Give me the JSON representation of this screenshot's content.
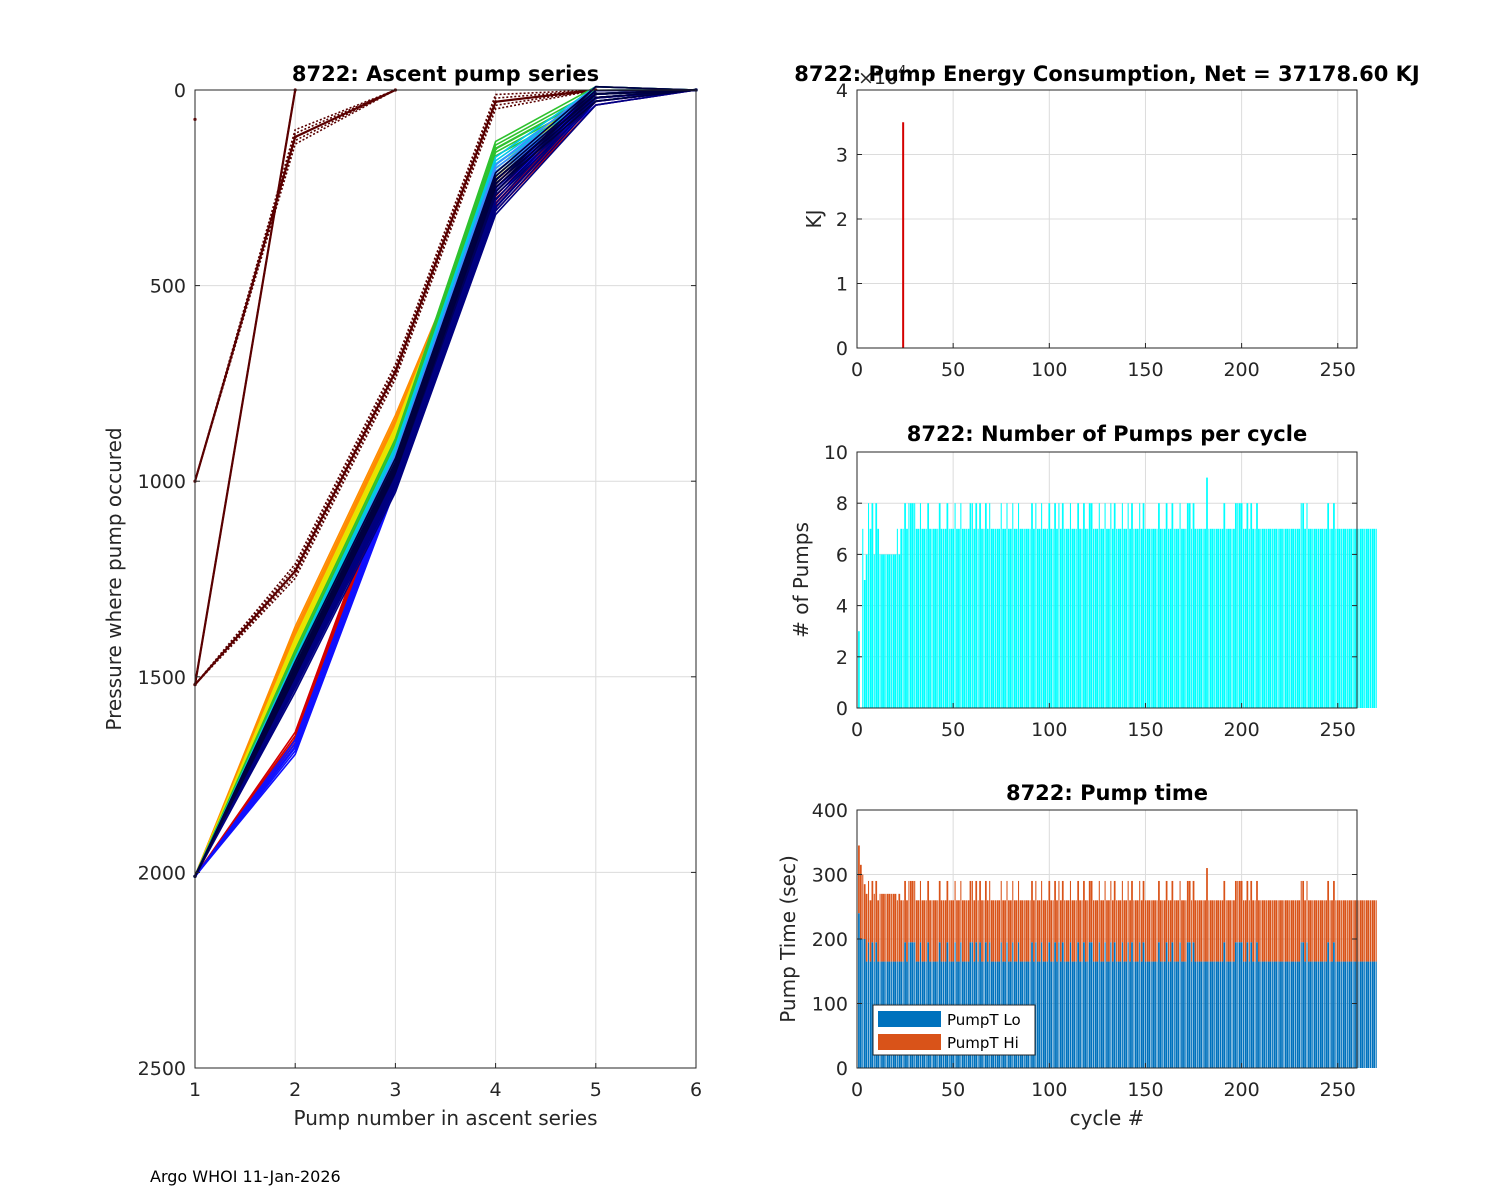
{
  "footer": "Argo WHOI 11-Jan-2026",
  "chart_data": [
    {
      "type": "line",
      "title": "8722: Ascent pump series",
      "xlabel": "Pump number in ascent series",
      "ylabel": "Pressure where pump occured",
      "xlim": [
        1,
        6
      ],
      "ylim": [
        0,
        2500
      ],
      "y_reversed": true,
      "xticks": [
        "1",
        "2",
        "3",
        "4",
        "5",
        "6"
      ],
      "yticks": [
        "0",
        "500",
        "1000",
        "1500",
        "2000",
        "2500"
      ],
      "grid": true,
      "series": [
        {
          "name": "dark red 1",
          "color": "#5a0000",
          "x": [
            1,
            2
          ],
          "y": [
            1520,
            0
          ]
        },
        {
          "name": "dark red 2",
          "color": "#5a0000",
          "x": [
            1,
            2,
            3
          ],
          "y": [
            1000,
            120,
            0
          ]
        },
        {
          "name": "dark red 3",
          "color": "#5a0000",
          "x": [
            1,
            2,
            3,
            4,
            5
          ],
          "y": [
            1520,
            1230,
            720,
            30,
            0
          ]
        },
        {
          "name": "dark red 4",
          "color": "#7a0000",
          "x": [
            1
          ],
          "y": [
            75
          ]
        },
        {
          "name": "red",
          "color": "#d40000",
          "x": [
            1,
            2,
            3,
            4,
            5,
            6
          ],
          "y": [
            2010,
            1660,
            960,
            290,
            20,
            0
          ]
        },
        {
          "name": "orange",
          "color": "#ff8c00",
          "x": [
            1,
            2,
            3,
            4,
            5,
            6
          ],
          "y": [
            2010,
            1390,
            850,
            240,
            10,
            0
          ]
        },
        {
          "name": "yellow",
          "color": "#e6e600",
          "x": [
            1,
            2,
            3,
            4,
            5,
            6
          ],
          "y": [
            2010,
            1420,
            880,
            220,
            10,
            0
          ]
        },
        {
          "name": "green",
          "color": "#2ec22e",
          "x": [
            1,
            2,
            3,
            4,
            5,
            6
          ],
          "y": [
            2010,
            1450,
            910,
            150,
            10,
            0
          ]
        },
        {
          "name": "cyan",
          "color": "#00c8e6",
          "x": [
            1,
            2,
            3,
            4,
            5,
            6
          ],
          "y": [
            2010,
            1470,
            930,
            190,
            10,
            0
          ]
        },
        {
          "name": "light blue",
          "color": "#3a8cff",
          "x": [
            1,
            2,
            3,
            4,
            5,
            6
          ],
          "y": [
            2010,
            1490,
            950,
            210,
            10,
            0
          ]
        },
        {
          "name": "blue",
          "color": "#1010ff",
          "x": [
            1,
            2,
            3,
            4,
            5,
            6
          ],
          "y": [
            2010,
            1680,
            1000,
            250,
            20,
            0
          ]
        },
        {
          "name": "navy 1",
          "color": "#00005a",
          "x": [
            1,
            2,
            3,
            4,
            5,
            6
          ],
          "y": [
            2010,
            1500,
            980,
            260,
            10,
            0
          ]
        },
        {
          "name": "navy 2",
          "color": "#000080",
          "x": [
            1,
            2,
            3,
            4,
            5,
            6
          ],
          "y": [
            2010,
            1520,
            1010,
            300,
            20,
            0
          ]
        },
        {
          "name": "navy 3",
          "color": "#000040",
          "x": [
            1,
            2,
            3,
            4,
            5,
            6
          ],
          "y": [
            2010,
            1480,
            960,
            230,
            10,
            0
          ]
        }
      ]
    },
    {
      "type": "bar",
      "title": "8722: Pump Energy Consumption,  Net = 37178.60 KJ",
      "ylabel": "KJ",
      "y_multiplier": "×10",
      "y_multiplier_exponent": "4",
      "xlim": [
        0,
        260
      ],
      "ylim": [
        0,
        4
      ],
      "xticks": [
        "0",
        "50",
        "100",
        "150",
        "200",
        "250"
      ],
      "yticks": [
        "0",
        "1",
        "2",
        "3",
        "4"
      ],
      "grid": true,
      "bar_color": "#d40000",
      "x": [
        24
      ],
      "values": [
        3.5
      ]
    },
    {
      "type": "bar",
      "title": "8722: Number of Pumps per cycle",
      "ylabel": "# of Pumps",
      "xlim": [
        0,
        260
      ],
      "ylim": [
        0,
        10
      ],
      "xticks": [
        "0",
        "50",
        "100",
        "150",
        "200",
        "250"
      ],
      "yticks": [
        "0",
        "2",
        "4",
        "6",
        "8",
        "10"
      ],
      "grid": true,
      "bar_color": "#00ffff",
      "x_start": 1,
      "values": [
        3,
        0,
        7,
        5,
        6,
        8,
        7,
        8,
        6,
        8,
        7,
        6,
        6,
        6,
        6,
        6,
        6,
        6,
        6,
        6,
        7,
        6,
        7,
        7,
        8,
        7,
        8,
        8,
        8,
        8,
        7,
        7,
        8,
        7,
        7,
        7,
        8,
        7,
        7,
        7,
        7,
        7,
        8,
        7,
        7,
        7,
        8,
        7,
        7,
        7,
        8,
        7,
        7,
        8,
        7,
        7,
        7,
        7,
        8,
        8,
        7,
        8,
        7,
        8,
        7,
        7,
        8,
        7,
        8,
        7,
        7,
        7,
        7,
        7,
        8,
        7,
        7,
        8,
        7,
        7,
        8,
        7,
        7,
        8,
        7,
        7,
        7,
        7,
        7,
        7,
        8,
        7,
        8,
        7,
        7,
        8,
        7,
        7,
        7,
        8,
        7,
        7,
        8,
        7,
        8,
        7,
        8,
        7,
        7,
        7,
        8,
        7,
        7,
        7,
        8,
        7,
        7,
        8,
        7,
        7,
        8,
        8,
        7,
        7,
        7,
        8,
        7,
        7,
        8,
        7,
        7,
        8,
        7,
        8,
        7,
        7,
        7,
        8,
        7,
        7,
        8,
        7,
        8,
        7,
        7,
        7,
        8,
        7,
        8,
        7,
        7,
        7,
        7,
        7,
        7,
        7,
        8,
        7,
        7,
        7,
        8,
        7,
        7,
        8,
        7,
        7,
        7,
        8,
        7,
        7,
        7,
        8,
        8,
        7,
        8,
        7,
        7,
        7,
        7,
        7,
        7,
        9,
        7,
        7,
        7,
        7,
        7,
        7,
        7,
        7,
        8,
        7,
        7,
        7,
        7,
        7,
        8,
        8,
        8,
        8,
        7,
        7,
        8,
        7,
        8,
        7,
        7,
        8,
        7,
        7,
        7,
        7,
        7,
        7,
        7,
        7,
        7,
        7,
        7,
        7,
        7,
        7,
        7,
        7,
        7,
        7,
        7,
        7,
        7,
        7,
        8,
        8,
        7,
        8,
        7,
        7,
        7,
        7,
        7,
        7,
        7,
        7,
        7,
        7,
        8,
        7,
        7,
        8,
        7,
        7,
        7,
        7,
        7,
        7,
        7,
        7,
        7,
        7,
        7,
        7,
        7,
        7,
        7,
        7,
        7,
        7,
        7,
        7,
        7,
        7
      ],
      "gap_every": 2
    },
    {
      "type": "bar",
      "stacked": true,
      "title": "8722: Pump time",
      "xlabel": "cycle #",
      "ylabel": "Pump Time (sec)",
      "xlim": [
        0,
        260
      ],
      "ylim": [
        0,
        400
      ],
      "xticks": [
        "0",
        "50",
        "100",
        "150",
        "200",
        "250"
      ],
      "yticks": [
        "0",
        "100",
        "200",
        "300",
        "400"
      ],
      "grid": true,
      "legend_position": "bottom-left",
      "series": [
        {
          "name": "PumpT Lo",
          "color": "#0072bd",
          "typical": 165,
          "alt": 195,
          "first": 240
        },
        {
          "name": "PumpT Hi",
          "color": "#d95319",
          "typical_total": 260,
          "alt_total": 290,
          "first_total": 345,
          "max_total": 310
        }
      ]
    }
  ]
}
